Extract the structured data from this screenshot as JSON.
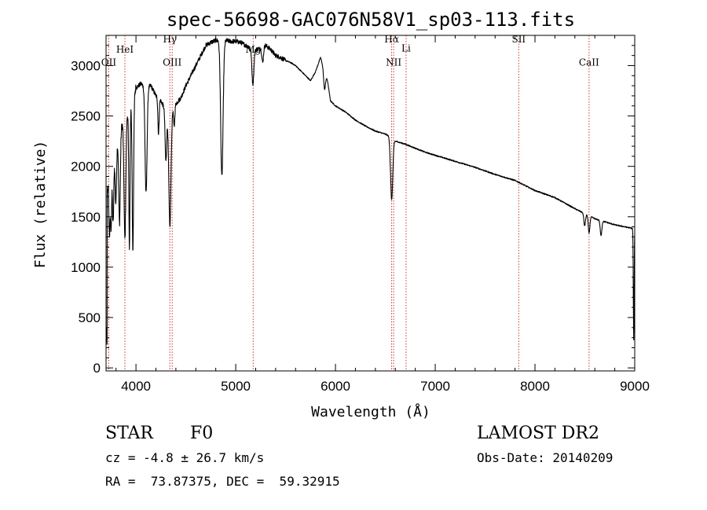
{
  "chart_data": {
    "type": "line",
    "title": "spec-56698-GAC076N58V1_sp03-113.fits",
    "xlabel": "Wavelength (Å)",
    "ylabel": "Flux (relative)",
    "xlim": [
      3700,
      9000
    ],
    "ylim": [
      -30,
      3300
    ],
    "xticks": [
      4000,
      5000,
      6000,
      7000,
      8000,
      9000
    ],
    "xtick_labels": [
      "4000",
      "5000",
      "6000",
      "7000",
      "8000",
      "9000"
    ],
    "yticks": [
      0,
      500,
      1000,
      1500,
      2000,
      2500,
      3000
    ],
    "ytick_labels": [
      "0",
      "500",
      "1000",
      "1500",
      "2000",
      "2500",
      "3000"
    ],
    "grid": false,
    "line_color": "#000000",
    "marker_color": "#cc3333",
    "continuum": [
      [
        3700,
        1600
      ],
      [
        3720,
        1850
      ],
      [
        3750,
        1900
      ],
      [
        3800,
        2200
      ],
      [
        3850,
        2400
      ],
      [
        3900,
        2500
      ],
      [
        3950,
        2600
      ],
      [
        4000,
        2780
      ],
      [
        4050,
        2820
      ],
      [
        4100,
        2780
      ],
      [
        4150,
        2800
      ],
      [
        4200,
        2700
      ],
      [
        4250,
        2650
      ],
      [
        4300,
        2550
      ],
      [
        4350,
        2550
      ],
      [
        4400,
        2620
      ],
      [
        4450,
        2680
      ],
      [
        4500,
        2800
      ],
      [
        4550,
        2900
      ],
      [
        4600,
        3000
      ],
      [
        4650,
        3100
      ],
      [
        4700,
        3200
      ],
      [
        4750,
        3230
      ],
      [
        4800,
        3250
      ],
      [
        4850,
        3250
      ],
      [
        4900,
        3250
      ],
      [
        4950,
        3240
      ],
      [
        5000,
        3240
      ],
      [
        5050,
        3230
      ],
      [
        5100,
        3200
      ],
      [
        5150,
        3180
      ],
      [
        5200,
        3160
      ],
      [
        5250,
        3170
      ],
      [
        5300,
        3200
      ],
      [
        5350,
        3160
      ],
      [
        5400,
        3100
      ],
      [
        5450,
        3080
      ],
      [
        5500,
        3050
      ],
      [
        5550,
        3030
      ],
      [
        5600,
        3000
      ],
      [
        5650,
        2950
      ],
      [
        5700,
        2900
      ],
      [
        5750,
        2850
      ],
      [
        5800,
        2940
      ],
      [
        5850,
        3080
      ],
      [
        5880,
        2980
      ],
      [
        5920,
        2850
      ],
      [
        5950,
        2650
      ],
      [
        6000,
        2600
      ],
      [
        6100,
        2540
      ],
      [
        6200,
        2460
      ],
      [
        6300,
        2400
      ],
      [
        6400,
        2350
      ],
      [
        6500,
        2320
      ],
      [
        6560,
        2290
      ],
      [
        6600,
        2250
      ],
      [
        6700,
        2220
      ],
      [
        6800,
        2180
      ],
      [
        6900,
        2140
      ],
      [
        7000,
        2110
      ],
      [
        7200,
        2050
      ],
      [
        7400,
        1990
      ],
      [
        7600,
        1920
      ],
      [
        7800,
        1860
      ],
      [
        8000,
        1760
      ],
      [
        8200,
        1690
      ],
      [
        8400,
        1580
      ],
      [
        8600,
        1480
      ],
      [
        8800,
        1420
      ],
      [
        9000,
        1380
      ]
    ],
    "absorption_lines": [
      {
        "x": 3734,
        "depth": 550,
        "width": 6
      },
      {
        "x": 3750,
        "depth": 500,
        "width": 6
      },
      {
        "x": 3771,
        "depth": 600,
        "width": 6
      },
      {
        "x": 3798,
        "depth": 550,
        "width": 7
      },
      {
        "x": 3835,
        "depth": 900,
        "width": 8
      },
      {
        "x": 3889,
        "depth": 1200,
        "width": 9
      },
      {
        "x": 3934,
        "depth": 1350,
        "width": 6
      },
      {
        "x": 3969,
        "depth": 1500,
        "width": 7
      },
      {
        "x": 4101,
        "depth": 1050,
        "width": 10
      },
      {
        "x": 4226,
        "depth": 350,
        "width": 6
      },
      {
        "x": 4300,
        "depth": 500,
        "width": 8
      },
      {
        "x": 4340,
        "depth": 1150,
        "width": 11
      },
      {
        "x": 4383,
        "depth": 200,
        "width": 6
      },
      {
        "x": 4861,
        "depth": 1350,
        "width": 12
      },
      {
        "x": 5172,
        "depth": 350,
        "width": 10
      },
      {
        "x": 5270,
        "depth": 150,
        "width": 8
      },
      {
        "x": 5890,
        "depth": 180,
        "width": 9
      },
      {
        "x": 6563,
        "depth": 620,
        "width": 11
      },
      {
        "x": 8498,
        "depth": 120,
        "width": 8
      },
      {
        "x": 8542,
        "depth": 170,
        "width": 8
      },
      {
        "x": 8662,
        "depth": 150,
        "width": 8
      },
      {
        "x": 8990,
        "depth": 1100,
        "width": 4
      }
    ],
    "line_markers": [
      {
        "label": "OII",
        "x": 3727,
        "label_y": 3000
      },
      {
        "label": "HeI",
        "x": 3889,
        "label_y": 3130
      },
      {
        "label": "Hγ",
        "x": 4340,
        "label_y": 3230
      },
      {
        "label": "OIII",
        "x": 4363,
        "label_y": 3000
      },
      {
        "label": "Mg",
        "x": 5175,
        "label_y": 3130
      },
      {
        "label": "Hα",
        "x": 6563,
        "label_y": 3230
      },
      {
        "label": "NII",
        "x": 6583,
        "label_y": 3000
      },
      {
        "label": "Li",
        "x": 6708,
        "label_y": 3140
      },
      {
        "label": "SII",
        "x": 7837,
        "label_y": 3230
      },
      {
        "label": "CaII",
        "x": 8542,
        "label_y": 3000
      }
    ]
  },
  "info": {
    "object_class": "STAR",
    "subclass": "F0",
    "survey": "LAMOST DR2",
    "redshift": "cz = -4.8 ± 26.7 km/s",
    "obs_date": "Obs-Date: 20140209",
    "coords": "RA =  73.87375, DEC =  59.32915"
  }
}
